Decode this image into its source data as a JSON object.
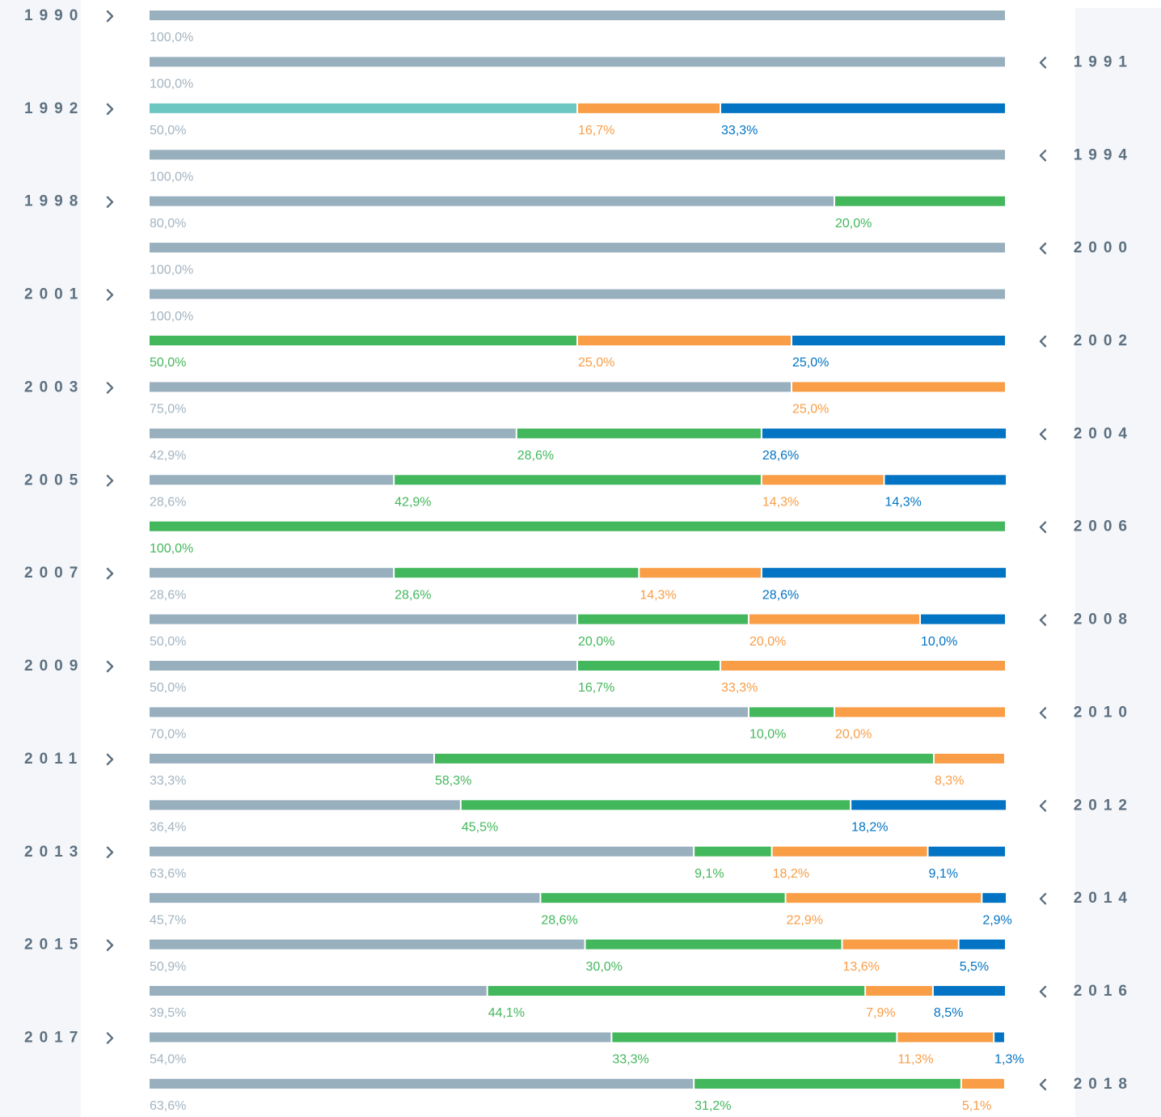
{
  "chart_data": {
    "type": "bar",
    "orientation": "horizontal",
    "stacked": true,
    "xlim": [
      0,
      100
    ],
    "categories": [
      "1990",
      "1991",
      "1992",
      "1994",
      "1998",
      "2000",
      "2001",
      "2002",
      "2003",
      "2004",
      "2005",
      "2006",
      "2007",
      "2008",
      "2009",
      "2010",
      "2011",
      "2012",
      "2013",
      "2014",
      "2015",
      "2016",
      "2017",
      "2018"
    ],
    "series": [
      {
        "color": "#98afbe",
        "label_color": "#a3b4c1",
        "values": [
          100,
          100,
          null,
          100,
          80,
          100,
          100,
          null,
          75,
          42.9,
          28.6,
          null,
          28.6,
          50,
          50,
          70,
          33.3,
          36.4,
          63.6,
          45.7,
          50.9,
          39.5,
          54.0,
          63.6
        ],
        "value_labels": [
          "100,0%",
          "100,0%",
          null,
          "100,0%",
          "80,0%",
          "100,0%",
          "100,0%",
          null,
          "75,0%",
          "42,9%",
          "28,6%",
          null,
          "28,6%",
          "50,0%",
          "50,0%",
          "70,0%",
          "33,3%",
          "36,4%",
          "63,6%",
          "45,7%",
          "50,9%",
          "39,5%",
          "54,0%",
          "63,6%"
        ]
      },
      {
        "color": "#6cc6c2",
        "label_color": "#a3b4c1",
        "values": [
          null,
          null,
          50,
          null,
          null,
          null,
          null,
          null,
          null,
          null,
          null,
          null,
          null,
          null,
          null,
          null,
          null,
          null,
          null,
          null,
          null,
          null,
          null,
          null
        ],
        "value_labels": [
          null,
          null,
          "50,0%",
          null,
          null,
          null,
          null,
          null,
          null,
          null,
          null,
          null,
          null,
          null,
          null,
          null,
          null,
          null,
          null,
          null,
          null,
          null,
          null,
          null
        ]
      },
      {
        "color": "#43b75c",
        "label_color": "#43b75c",
        "values": [
          null,
          null,
          null,
          null,
          20,
          null,
          null,
          50,
          null,
          28.6,
          42.9,
          100,
          28.6,
          20,
          16.7,
          10,
          58.3,
          45.5,
          9.1,
          28.6,
          30.0,
          44.1,
          33.3,
          31.2
        ],
        "value_labels": [
          null,
          null,
          null,
          null,
          "20,0%",
          null,
          null,
          "50,0%",
          null,
          "28,6%",
          "42,9%",
          "100,0%",
          "28,6%",
          "20,0%",
          "16,7%",
          "10,0%",
          "58,3%",
          "45,5%",
          "9,1%",
          "28,6%",
          "30,0%",
          "44,1%",
          "33,3%",
          "31,2%"
        ]
      },
      {
        "color": "#f99d46",
        "label_color": "#f99d46",
        "values": [
          null,
          null,
          16.7,
          null,
          null,
          null,
          null,
          25,
          25,
          null,
          14.3,
          null,
          14.3,
          20,
          33.3,
          20,
          8.3,
          null,
          18.2,
          22.9,
          13.6,
          7.9,
          11.3,
          5.1
        ],
        "value_labels": [
          null,
          null,
          "16,7%",
          null,
          null,
          null,
          null,
          "25,0%",
          "25,0%",
          null,
          "14,3%",
          null,
          "14,3%",
          "20,0%",
          "33,3%",
          "20,0%",
          "8,3%",
          null,
          "18,2%",
          "22,9%",
          "13,6%",
          "7,9%",
          "11,3%",
          "5,1%"
        ]
      },
      {
        "color": "#0274c3",
        "label_color": "#0274c3",
        "values": [
          null,
          null,
          33.3,
          null,
          null,
          null,
          null,
          25,
          null,
          28.6,
          14.3,
          null,
          28.6,
          10,
          null,
          null,
          null,
          18.2,
          9.1,
          2.9,
          5.5,
          8.5,
          1.3,
          null
        ],
        "value_labels": [
          null,
          null,
          "33,3%",
          null,
          null,
          null,
          null,
          "25,0%",
          null,
          "28,6%",
          "14,3%",
          null,
          "28,6%",
          "10,0%",
          null,
          null,
          null,
          "18,2%",
          "9,1%",
          "2,9%",
          "5,5%",
          "8,5%",
          "1,3%",
          null
        ]
      }
    ]
  }
}
